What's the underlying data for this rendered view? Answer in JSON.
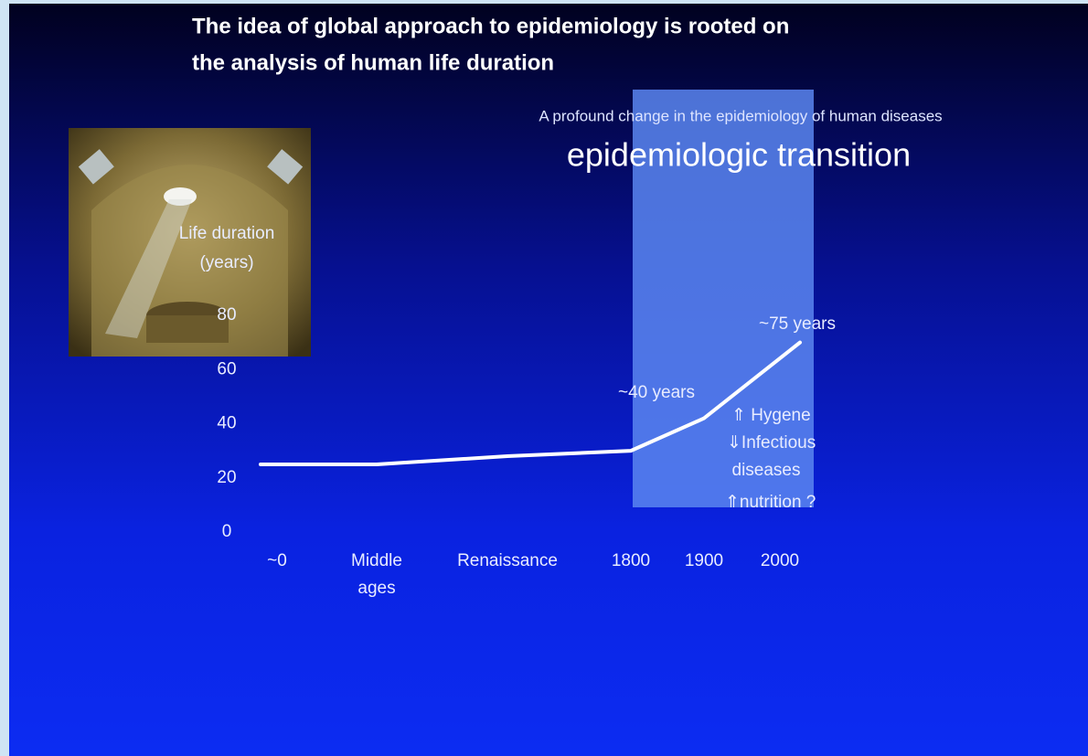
{
  "header": {
    "title": [
      "The idea of  global approach to  epidemiology is rooted on",
      "the analysis of human life duration"
    ]
  },
  "chart_data": {
    "type": "line",
    "subtitle": "A profound change in the epidemiology of human diseases",
    "title": "epidemiologic transition",
    "y_label": [
      "Life duration",
      "(years)"
    ],
    "categories": [
      [
        "~0"
      ],
      [
        "Middle",
        "ages"
      ],
      [
        "Renaissance"
      ],
      [
        "1800"
      ],
      [
        "1900"
      ],
      [
        "2000"
      ]
    ],
    "series": [
      {
        "name": "Life duration",
        "color": "#ffffff",
        "values": [
          25,
          25,
          28,
          30,
          42,
          70
        ]
      }
    ],
    "ylim": [
      0,
      80
    ],
    "yticks": [
      0,
      20,
      40,
      60,
      80
    ],
    "annotations": [
      "~40 years",
      "~75 years",
      "⇑ Hygene",
      "⇓Infectious",
      "diseases",
      "⇑nutrition ?"
    ]
  }
}
